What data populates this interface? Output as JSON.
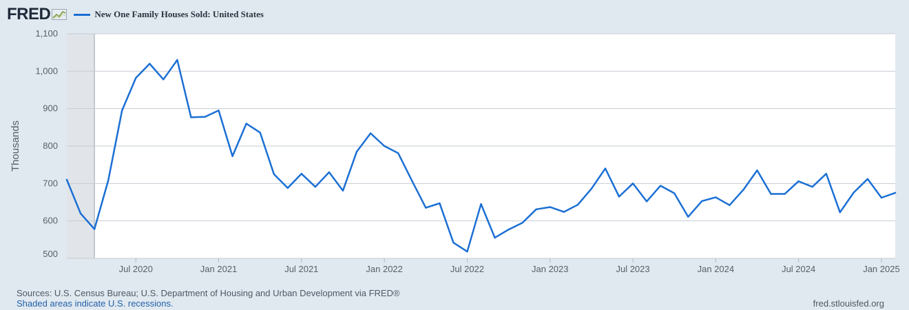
{
  "header": {
    "logo_text": "FRED",
    "logo_icon": "fred-trend-icon"
  },
  "footer": {
    "sources": "Sources: U.S. Census Bureau; U.S. Department of Housing and Urban Development via FRED®",
    "shading_note": "Shaded areas indicate U.S. recessions.",
    "site": "fred.stlouisfed.org"
  },
  "colors": {
    "series": "#1b6fd4",
    "plot_background": "#ffffff",
    "page_background": "#e1e9f0",
    "recession_shading": "#e1e5e9",
    "grid": "#c6ccd2"
  },
  "chart_data": {
    "type": "line",
    "title": "",
    "xlabel": "",
    "ylabel": "Thousands",
    "ylim": [
      500,
      1100
    ],
    "xlim": [
      "2020-02",
      "2025-02"
    ],
    "grid": true,
    "legend_position": "top-left",
    "y_ticks": [
      500,
      600,
      700,
      800,
      900,
      1000,
      1100
    ],
    "y_tick_labels": [
      "500",
      "600",
      "700",
      "800",
      "900",
      "1,000",
      "1,100"
    ],
    "x_ticks": [
      "2020-07",
      "2021-01",
      "2021-07",
      "2022-01",
      "2022-07",
      "2023-01",
      "2023-07",
      "2024-01",
      "2024-07",
      "2025-01"
    ],
    "x_tick_labels": [
      "Jul 2020",
      "Jan 2021",
      "Jul 2021",
      "Jan 2022",
      "Jul 2022",
      "Jan 2023",
      "Jul 2023",
      "Jan 2024",
      "Jul 2024",
      "Jan 2025"
    ],
    "recessions": [
      {
        "start": "2020-02",
        "end": "2020-04"
      }
    ],
    "series": [
      {
        "name": "New One Family Houses Sold: United States",
        "x": [
          "2020-02",
          "2020-03",
          "2020-04",
          "2020-05",
          "2020-06",
          "2020-07",
          "2020-08",
          "2020-09",
          "2020-10",
          "2020-11",
          "2020-12",
          "2021-01",
          "2021-02",
          "2021-03",
          "2021-04",
          "2021-05",
          "2021-06",
          "2021-07",
          "2021-08",
          "2021-09",
          "2021-10",
          "2021-11",
          "2021-12",
          "2022-01",
          "2022-02",
          "2022-03",
          "2022-04",
          "2022-05",
          "2022-06",
          "2022-07",
          "2022-08",
          "2022-09",
          "2022-10",
          "2022-11",
          "2022-12",
          "2023-01",
          "2023-02",
          "2023-03",
          "2023-04",
          "2023-05",
          "2023-06",
          "2023-07",
          "2023-08",
          "2023-09",
          "2023-10",
          "2023-11",
          "2023-12",
          "2024-01",
          "2024-02",
          "2024-03",
          "2024-04",
          "2024-05",
          "2024-06",
          "2024-07",
          "2024-08",
          "2024-09",
          "2024-10",
          "2024-11",
          "2024-12",
          "2025-01",
          "2025-02"
        ],
        "values": [
          710,
          620,
          578,
          708,
          895,
          982,
          1020,
          978,
          1030,
          877,
          878,
          895,
          773,
          860,
          836,
          725,
          688,
          726,
          691,
          730,
          681,
          785,
          834,
          800,
          781,
          707,
          635,
          647,
          542,
          518,
          645,
          555,
          577,
          595,
          631,
          637,
          624,
          643,
          686,
          740,
          665,
          700,
          652,
          694,
          674,
          611,
          653,
          663,
          642,
          683,
          735,
          672,
          672,
          706,
          691,
          726,
          623,
          676,
          712,
          662,
          675
        ]
      }
    ]
  }
}
